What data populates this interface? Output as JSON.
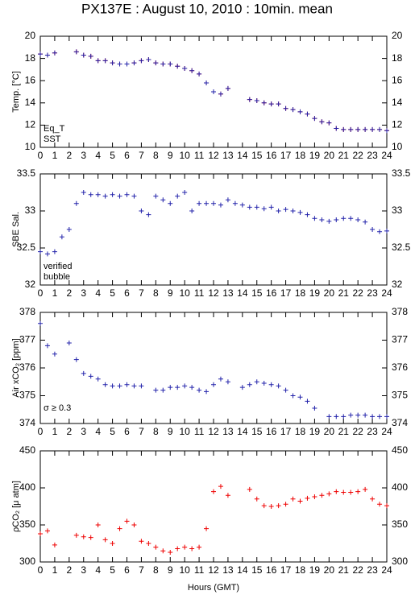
{
  "title": "PX137E : August 10, 2010 : 10min. mean",
  "x_label": "Hours (GMT)",
  "chart_data": [
    {
      "type": "scatter",
      "y_label": "Temp. [°C]",
      "x": [
        0,
        0.5,
        1,
        1.5,
        2,
        2.5,
        3,
        3.5,
        4,
        4.5,
        5,
        5.5,
        6,
        6.5,
        7,
        7.5,
        8,
        8.5,
        9,
        9.5,
        10,
        10.5,
        11,
        11.5,
        12,
        12.5,
        13,
        13.5,
        14,
        14.5,
        15,
        15.5,
        16,
        16.5,
        17,
        17.5,
        18,
        18.5,
        19,
        19.5,
        20,
        20.5,
        21,
        21.5,
        22,
        22.5,
        23,
        23.5,
        24
      ],
      "series": [
        {
          "name": "Eq_T",
          "color": "#ee0000",
          "values": [
            18.4,
            18.3,
            18.5,
            null,
            null,
            18.6,
            18.3,
            18.2,
            17.8,
            17.8,
            17.6,
            17.5,
            17.5,
            17.6,
            17.8,
            17.9,
            17.6,
            17.5,
            17.5,
            17.3,
            17.1,
            16.9,
            16.6,
            15.8,
            15.0,
            14.8,
            15.3,
            null,
            null,
            14.3,
            14.2,
            14.0,
            13.9,
            13.9,
            13.5,
            13.4,
            13.2,
            13.0,
            12.6,
            12.3,
            12.2,
            11.7,
            11.6,
            11.6,
            11.6,
            11.6,
            11.6,
            11.6,
            11.5
          ]
        },
        {
          "name": "SST",
          "color": "#2222aa",
          "values": [
            18.4,
            18.3,
            18.5,
            null,
            null,
            18.6,
            18.3,
            18.2,
            17.8,
            17.8,
            17.6,
            17.5,
            17.5,
            17.6,
            17.8,
            17.9,
            17.6,
            17.5,
            17.5,
            17.3,
            17.1,
            16.9,
            16.6,
            15.8,
            15.0,
            14.8,
            15.3,
            null,
            null,
            14.3,
            14.2,
            14.0,
            13.9,
            13.9,
            13.5,
            13.4,
            13.2,
            13.0,
            12.6,
            12.3,
            12.2,
            11.7,
            11.6,
            11.6,
            11.6,
            11.6,
            11.6,
            11.6,
            11.5
          ]
        }
      ],
      "xlim": [
        0,
        24
      ],
      "xticks": [
        0,
        1,
        2,
        3,
        4,
        5,
        6,
        7,
        8,
        9,
        10,
        11,
        12,
        13,
        14,
        15,
        16,
        17,
        18,
        19,
        20,
        21,
        22,
        23,
        24
      ],
      "ylim": [
        10,
        20
      ],
      "yticks": [
        10,
        12,
        14,
        16,
        18,
        20
      ]
    },
    {
      "type": "scatter",
      "y_label": "SBE Sal.",
      "x": [
        0,
        0.5,
        1,
        1.5,
        2,
        2.5,
        3,
        3.5,
        4,
        4.5,
        5,
        5.5,
        6,
        6.5,
        7,
        7.5,
        8,
        8.5,
        9,
        9.5,
        10,
        10.5,
        11,
        11.5,
        12,
        12.5,
        13,
        13.5,
        14,
        14.5,
        15,
        15.5,
        16,
        16.5,
        17,
        17.5,
        18,
        18.5,
        19,
        19.5,
        20,
        20.5,
        21,
        21.5,
        22,
        22.5,
        23,
        23.5,
        24
      ],
      "series": [
        {
          "name": "verified",
          "color": "#2222aa",
          "values": [
            32.45,
            32.42,
            32.45,
            32.65,
            32.75,
            33.1,
            33.25,
            33.22,
            33.22,
            33.2,
            33.22,
            33.2,
            33.22,
            33.2,
            33.0,
            32.95,
            33.2,
            33.15,
            33.1,
            33.2,
            33.25,
            33.0,
            33.1,
            33.1,
            33.1,
            33.08,
            33.15,
            33.1,
            33.08,
            33.05,
            33.05,
            33.03,
            33.05,
            33.0,
            33.02,
            33.0,
            32.98,
            32.95,
            32.9,
            32.88,
            32.86,
            32.88,
            32.9,
            32.9,
            32.88,
            32.85,
            32.75,
            32.72,
            32.73
          ]
        },
        {
          "name": "bubble",
          "color": "#cc33cc",
          "values": [
            null,
            null,
            null,
            null,
            null,
            null,
            null,
            null,
            null,
            null,
            null,
            null,
            null,
            null,
            null,
            null,
            null,
            null,
            null,
            null,
            null,
            null,
            null,
            null,
            null,
            null,
            null,
            null,
            null,
            null,
            null,
            null,
            null,
            null,
            null,
            null,
            null,
            null,
            null,
            null,
            null,
            null,
            null,
            null,
            null,
            null,
            null,
            null,
            null
          ]
        }
      ],
      "xlim": [
        0,
        24
      ],
      "xticks": [
        0,
        1,
        2,
        3,
        4,
        5,
        6,
        7,
        8,
        9,
        10,
        11,
        12,
        13,
        14,
        15,
        16,
        17,
        18,
        19,
        20,
        21,
        22,
        23,
        24
      ],
      "ylim": [
        32,
        33.5
      ],
      "yticks": [
        32,
        32.5,
        33,
        33.5
      ]
    },
    {
      "type": "scatter",
      "y_label": "Air xCO₂ [ppm]",
      "annotation": {
        "text": "σ ≥ 0.3",
        "color": "#cc33cc"
      },
      "x": [
        0,
        0.5,
        1,
        1.5,
        2,
        2.5,
        3,
        3.5,
        4,
        4.5,
        5,
        5.5,
        6,
        6.5,
        7,
        7.5,
        8,
        8.5,
        9,
        9.5,
        10,
        10.5,
        11,
        11.5,
        12,
        12.5,
        13,
        13.5,
        14,
        14.5,
        15,
        15.5,
        16,
        16.5,
        17,
        17.5,
        18,
        18.5,
        19,
        19.5,
        20,
        20.5,
        21,
        21.5,
        22,
        22.5,
        23,
        23.5,
        24
      ],
      "series": [
        {
          "name": "Air xCO2",
          "color": "#2222aa",
          "values": [
            377.6,
            376.8,
            376.5,
            null,
            376.9,
            376.3,
            375.8,
            375.7,
            375.6,
            375.4,
            375.35,
            375.35,
            375.4,
            375.35,
            375.35,
            null,
            375.2,
            375.2,
            375.3,
            375.3,
            375.35,
            375.3,
            375.2,
            375.15,
            375.4,
            375.6,
            375.5,
            null,
            375.3,
            375.4,
            375.5,
            375.45,
            375.4,
            375.35,
            375.2,
            375.0,
            374.95,
            374.8,
            374.55,
            null,
            374.25,
            374.25,
            374.25,
            374.3,
            374.3,
            374.3,
            374.25,
            374.25,
            374.25
          ]
        }
      ],
      "xlim": [
        0,
        24
      ],
      "xticks": [
        0,
        1,
        2,
        3,
        4,
        5,
        6,
        7,
        8,
        9,
        10,
        11,
        12,
        13,
        14,
        15,
        16,
        17,
        18,
        19,
        20,
        21,
        22,
        23,
        24
      ],
      "ylim": [
        374,
        378
      ],
      "yticks": [
        374,
        375,
        376,
        377,
        378
      ]
    },
    {
      "type": "scatter",
      "y_label": "ρCO₂ [μ atm]",
      "x": [
        0,
        0.5,
        1,
        1.5,
        2,
        2.5,
        3,
        3.5,
        4,
        4.5,
        5,
        5.5,
        6,
        6.5,
        7,
        7.5,
        8,
        8.5,
        9,
        9.5,
        10,
        10.5,
        11,
        11.5,
        12,
        12.5,
        13,
        13.5,
        14,
        14.5,
        15,
        15.5,
        16,
        16.5,
        17,
        17.5,
        18,
        18.5,
        19,
        19.5,
        20,
        20.5,
        21,
        21.5,
        22,
        22.5,
        23,
        23.5,
        24
      ],
      "series": [
        {
          "name": "pCO2",
          "color": "#ee0000",
          "values": [
            338,
            342,
            323,
            null,
            null,
            336,
            334,
            333,
            350,
            330,
            325,
            345,
            355,
            350,
            328,
            325,
            320,
            315,
            313,
            318,
            320,
            318,
            320,
            345,
            395,
            402,
            390,
            null,
            null,
            398,
            385,
            376,
            375,
            376,
            378,
            385,
            382,
            386,
            388,
            390,
            392,
            395,
            394,
            394,
            395,
            398,
            385,
            378,
            376
          ]
        }
      ],
      "xlim": [
        0,
        24
      ],
      "xticks": [
        0,
        1,
        2,
        3,
        4,
        5,
        6,
        7,
        8,
        9,
        10,
        11,
        12,
        13,
        14,
        15,
        16,
        17,
        18,
        19,
        20,
        21,
        22,
        23,
        24
      ],
      "ylim": [
        300,
        450
      ],
      "yticks": [
        300,
        350,
        400,
        450
      ]
    }
  ]
}
